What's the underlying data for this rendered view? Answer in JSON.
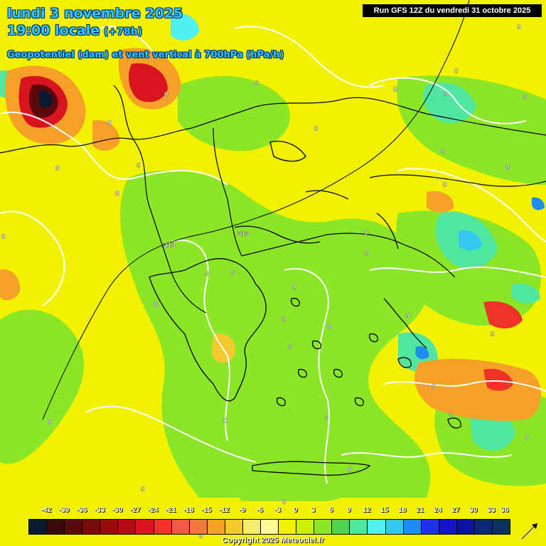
{
  "header": {
    "line1": "lundi 3 novembre 2025",
    "line2": "19:00 locale",
    "lead": "(+78h)",
    "parameter": "Geopotentiel (dam) et vent vertical à 700hPa (hPa/h)"
  },
  "run_label": "Run GFS 12Z du vendredi 31 octobre 2025",
  "legend": {
    "values": [
      "-42",
      "-39",
      "-36",
      "-33",
      "-30",
      "-27",
      "-24",
      "-21",
      "-18",
      "-15",
      "-12",
      "-9",
      "-6",
      "-3",
      "0",
      "3",
      "6",
      "9",
      "12",
      "15",
      "18",
      "21",
      "24",
      "27",
      "30",
      "33",
      "36"
    ],
    "colors": [
      "#0a1a33",
      "#3a0a0a",
      "#5a0a0a",
      "#7a0a0a",
      "#9a0a0a",
      "#b00a14",
      "#d8141e",
      "#f03228",
      "#f05a46",
      "#f07a3c",
      "#f5a028",
      "#f5c82d",
      "#f5eb6e",
      "#fafa96",
      "#f0f000",
      "#c8f000",
      "#8ce628",
      "#50d250",
      "#50e6a0",
      "#50f0f0",
      "#32c8f0",
      "#1e8cf0",
      "#1e32e6",
      "#1414c8",
      "#0a14a0",
      "#0a2878",
      "#0a3264"
    ]
  },
  "copyright": "Copyright 2025 Meteociel.fr",
  "map_labels": {
    "geopotential": [
      "313",
      "313"
    ],
    "zero_contours": [
      "0",
      "0",
      "0",
      "0",
      "0",
      "0",
      "0",
      "0",
      "0",
      "0",
      "0",
      "0",
      "0",
      "0",
      "0",
      "0",
      "0",
      "0",
      "0",
      "0",
      "0",
      "0",
      "0",
      "0",
      "0",
      "0",
      "0",
      "0",
      "0",
      "0",
      "0",
      "0",
      "0",
      "0",
      "0",
      "0",
      "0"
    ]
  },
  "colors": {
    "title": "#33c8ff",
    "field_yellow": "#f2f200",
    "field_green": "#8ce628",
    "field_orange": "#f5a028",
    "field_red": "#d8141e",
    "field_blue": "#1e8cf0"
  }
}
